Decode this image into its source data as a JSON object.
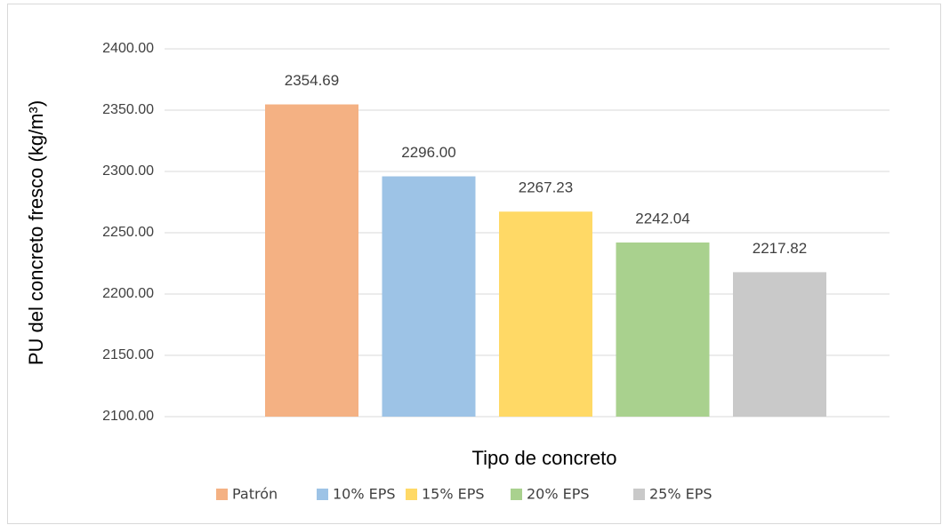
{
  "chart_data": {
    "type": "bar",
    "y_label": "PU del concreto fresco (kg/m³)",
    "x_label": "Tipo de concreto",
    "series": [
      {
        "name": "Patrón",
        "color": "#f4b183",
        "values": [
          2354.69
        ],
        "value_labels": [
          "2354.69"
        ]
      },
      {
        "name": "10% EPS",
        "color": "#9dc3e6",
        "values": [
          2296.0
        ],
        "value_labels": [
          "2296.00"
        ]
      },
      {
        "name": "15% EPS",
        "color": "#ffd966",
        "values": [
          2267.23
        ],
        "value_labels": [
          "2267.23"
        ]
      },
      {
        "name": "20% EPS",
        "color": "#a9d18e",
        "values": [
          2242.04
        ],
        "value_labels": [
          "2242.04"
        ]
      },
      {
        "name": "25% EPS",
        "color": "#c9c9c9",
        "values": [
          2217.82
        ],
        "value_labels": [
          "2217.82"
        ]
      }
    ],
    "ylim": [
      2100,
      2400
    ],
    "yticks": [
      {
        "value": 2100,
        "label": "2100.00"
      },
      {
        "value": 2150,
        "label": "2150.00"
      },
      {
        "value": 2200,
        "label": "2200.00"
      },
      {
        "value": 2250,
        "label": "2250.00"
      },
      {
        "value": 2300,
        "label": "2300.00"
      },
      {
        "value": 2350,
        "label": "2350.00"
      },
      {
        "value": 2400,
        "label": "2400.00"
      }
    ],
    "grid": true,
    "legend": "bottom"
  }
}
